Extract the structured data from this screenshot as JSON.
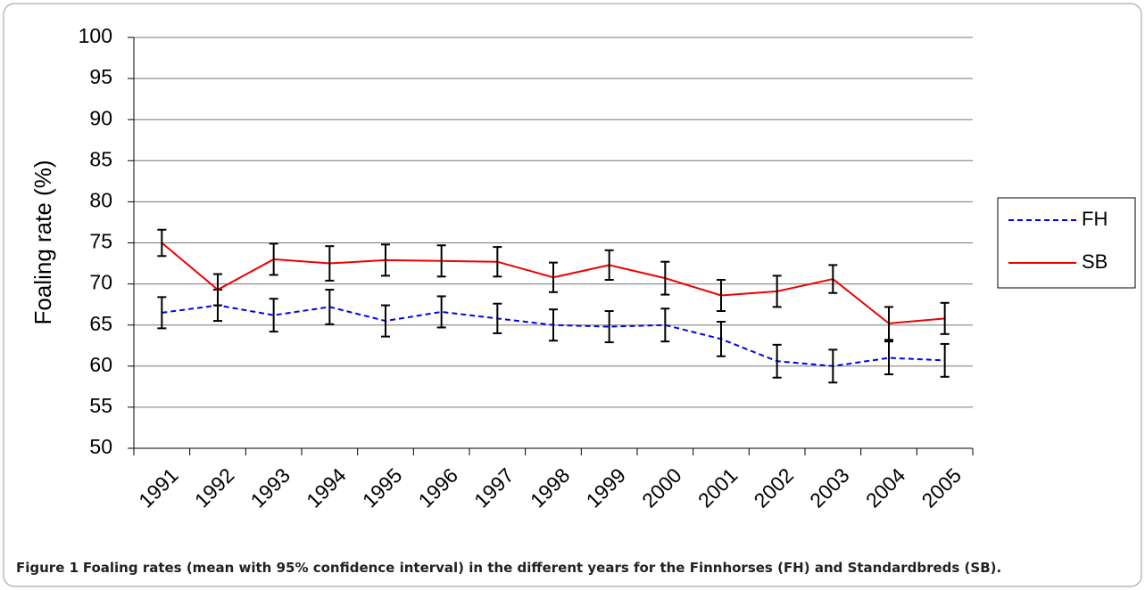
{
  "chart_data": {
    "type": "line",
    "y_label": "Foaling rate (%)",
    "caption": {
      "label": "Figure 1",
      "text": "Foaling rates (mean with 95% confidence interval) in the different years for the Finnhorses (FH) and Standardbreds (SB)."
    },
    "categories": [
      "1991",
      "1992",
      "1993",
      "1994",
      "1995",
      "1996",
      "1997",
      "1998",
      "1999",
      "2000",
      "2001",
      "2002",
      "2003",
      "2004",
      "2005"
    ],
    "series": [
      {
        "name": "FH",
        "color": "#0000ee",
        "dash": true,
        "values": [
          66.5,
          67.4,
          66.2,
          67.2,
          65.5,
          66.6,
          65.8,
          65.0,
          64.8,
          65.0,
          63.3,
          60.6,
          60.0,
          61.0,
          60.7
        ],
        "errors": [
          1.9,
          1.9,
          2.0,
          2.1,
          1.9,
          1.9,
          1.8,
          1.9,
          1.9,
          2.0,
          2.1,
          2.0,
          2.0,
          2.0,
          2.0
        ]
      },
      {
        "name": "SB",
        "color": "#ee0000",
        "dash": false,
        "values": [
          75.0,
          69.3,
          73.0,
          72.5,
          72.9,
          72.8,
          72.7,
          70.8,
          72.3,
          70.7,
          68.6,
          69.1,
          70.6,
          65.2,
          65.8
        ],
        "errors": [
          1.6,
          1.9,
          1.9,
          2.1,
          1.9,
          1.9,
          1.8,
          1.8,
          1.8,
          2.0,
          1.9,
          1.9,
          1.7,
          2.0,
          1.9
        ]
      }
    ],
    "ylim": [
      50,
      100
    ],
    "yticks": [
      50,
      55,
      60,
      65,
      70,
      75,
      80,
      85,
      90,
      95,
      100
    ],
    "grid": true,
    "legend": "right"
  }
}
